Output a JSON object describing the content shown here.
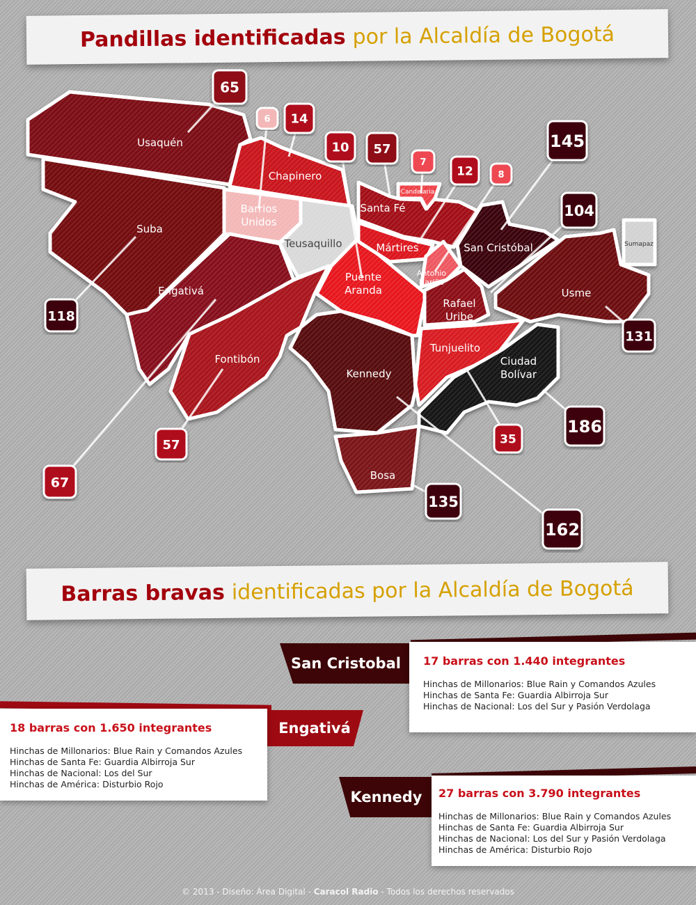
{
  "title1": {
    "strong": "Pandillas identificadas",
    "rest": "por la Alcaldía de Bogotá"
  },
  "title2": {
    "strong": "Barras bravas",
    "rest": "identificadas por la Alcaldía de Bogotá"
  },
  "districts": [
    {
      "id": "usaquen",
      "name": "Usaquén",
      "count": "65",
      "color": "#7c0b12"
    },
    {
      "id": "chapinero",
      "name": "Chapinero",
      "count": "14",
      "color": "#c9121c"
    },
    {
      "id": "barrios",
      "name": "Barrios Unidos",
      "count": "6",
      "color": "#f3b7b7"
    },
    {
      "id": "teusaquillo",
      "name": "Teusaquillo",
      "count": "",
      "color": "#d9d9d9"
    },
    {
      "id": "suba",
      "name": "Suba",
      "count": "118",
      "color": "#730a10"
    },
    {
      "id": "engativa",
      "name": "Engativá",
      "count": "67",
      "color": "#86101a"
    },
    {
      "id": "fontibon",
      "name": "Fontibón",
      "count": "57",
      "color": "#a8121c"
    },
    {
      "id": "puente",
      "name": "Puente Aranda",
      "count": "10",
      "color": "#e8161f"
    },
    {
      "id": "kennedy",
      "name": "Kennedy",
      "count": "162",
      "color": "#560a0d"
    },
    {
      "id": "bosa",
      "name": "Bosa",
      "count": "135",
      "color": "#7a1218"
    },
    {
      "id": "santafe",
      "name": "Santa Fé",
      "count": "57",
      "color": "#a20e17"
    },
    {
      "id": "candelaria",
      "name": "Candelaria",
      "count": "7",
      "color": "#ee4147"
    },
    {
      "id": "martires",
      "name": "Mártires",
      "count": "12",
      "color": "#dc141d"
    },
    {
      "id": "antonio",
      "name": "Antonio Nariño",
      "count": "8",
      "color": "#ee5861"
    },
    {
      "id": "rafael",
      "name": "Rafael Uribe",
      "count": "",
      "color": "#8c1017"
    },
    {
      "id": "sancristobal",
      "name": "San Cristóbal",
      "count": "145",
      "color": "#3a0508"
    },
    {
      "id": "usme",
      "name": "Usme",
      "count": "131",
      "color": "#6c0c11"
    },
    {
      "id": "sumapaz",
      "name": "Sumapaz",
      "count": "",
      "color": "#d2d2d2"
    },
    {
      "id": "tunjuelito",
      "name": "Tunjuelito",
      "count": "35",
      "color": "#d81a20"
    },
    {
      "id": "bolivar",
      "name": "Ciudad Bolívar",
      "count": "186",
      "color": "#121212"
    },
    {
      "id": "rafael2",
      "name": "",
      "count": "104",
      "color": "#8c1017"
    }
  ],
  "barras": [
    {
      "locality": "San Cristobal",
      "headline": "17 barras con 1.440 integrantes",
      "lines": [
        "Hinchas de Millonarios: Blue Rain y Comandos Azules",
        "Hinchas de Santa Fe: Guardia Albirroja Sur",
        "Hinchas de Nacional: Los del Sur y Pasión Verdolaga"
      ]
    },
    {
      "locality": "Engativá",
      "headline": "18 barras con 1.650 integrantes",
      "lines": [
        "Hinchas de Millonarios: Blue Rain y Comandos Azules",
        "Hinchas de Santa Fe: Guardia Albirroja Sur",
        "Hinchas de Nacional: Los del Sur",
        "Hinchas de América: Disturbio Rojo"
      ]
    },
    {
      "locality": "Kennedy",
      "headline": "27 barras con 3.790 integrantes",
      "lines": [
        "Hinchas de Millonarios: Blue Rain y Comandos Azules",
        "Hinchas de Santa Fe: Guardia Albirroja Sur",
        "Hinchas de Nacional: Los del Sur y Pasión Verdolaga",
        "Hinchas de América: Disturbio Rojo"
      ]
    }
  ],
  "colors": {
    "accent_red": "#a3000c",
    "gold": "#d6a000",
    "tag_dark": "#3d0507",
    "tag_red": "#9e0a12"
  },
  "footer": {
    "pre": "© 2013 - Diseño: Área Digital - ",
    "brand": "Caracol Radio",
    "post": " - Todos los derechos reservados"
  }
}
